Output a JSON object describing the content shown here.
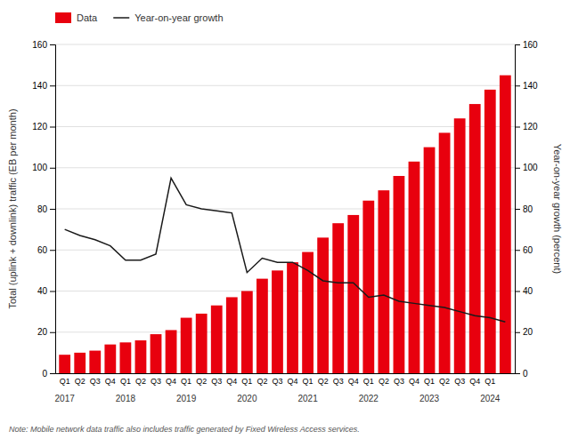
{
  "chart_data": {
    "type": "bar",
    "categories": [
      "Q1",
      "Q2",
      "Q3",
      "Q4",
      "Q1",
      "Q2",
      "Q3",
      "Q4",
      "Q1",
      "Q2",
      "Q3",
      "Q4",
      "Q1",
      "Q2",
      "Q3",
      "Q4",
      "Q1",
      "Q2",
      "Q3",
      "Q4",
      "Q1",
      "Q2",
      "Q3",
      "Q4",
      "Q1",
      "Q2",
      "Q3",
      "Q4",
      "Q1",
      null
    ],
    "annotations": [
      {
        "text": "2017",
        "x": 0
      },
      {
        "text": "2018",
        "x": 4
      },
      {
        "text": "2019",
        "x": 8
      },
      {
        "text": "2020",
        "x": 12
      },
      {
        "text": "2021",
        "x": 16
      },
      {
        "text": "2022",
        "x": 20
      },
      {
        "text": "2023",
        "x": 24
      },
      {
        "text": "2024",
        "x": 28
      }
    ],
    "series": [
      {
        "name": "Data",
        "type": "bar",
        "color": "#e8000e",
        "values": [
          9,
          10,
          11,
          14,
          15,
          16,
          19,
          21,
          27,
          29,
          33,
          37,
          40,
          46,
          50,
          54,
          59,
          66,
          73,
          77,
          84,
          89,
          96,
          103,
          110,
          117,
          124,
          131,
          138,
          145
        ]
      },
      {
        "name": "Year-on-year growth",
        "type": "line",
        "color": "#1a1a1a",
        "axis": "y2",
        "values": [
          70,
          67,
          65,
          62,
          55,
          55,
          58,
          95,
          82,
          80,
          79,
          78,
          49,
          56,
          54,
          54,
          50,
          45,
          44,
          44,
          37,
          38,
          35,
          34,
          33,
          32,
          30,
          28,
          27,
          25
        ]
      }
    ],
    "y_label": "Total (uplink + downlink) traffic (EB per month)",
    "y2_label": "Year-on-year growth (percent)",
    "ylim": [
      0,
      160
    ],
    "yticks": [
      0,
      20,
      40,
      60,
      80,
      100,
      120,
      140,
      160
    ],
    "y2lim": [
      0,
      160
    ],
    "y2ticks": [
      0,
      20,
      40,
      60,
      80,
      100,
      120,
      140,
      160
    ],
    "grid": true,
    "legend": "top-left",
    "note": "Note: Mobile network data traffic also includes traffic generated by Fixed Wireless Access services."
  }
}
